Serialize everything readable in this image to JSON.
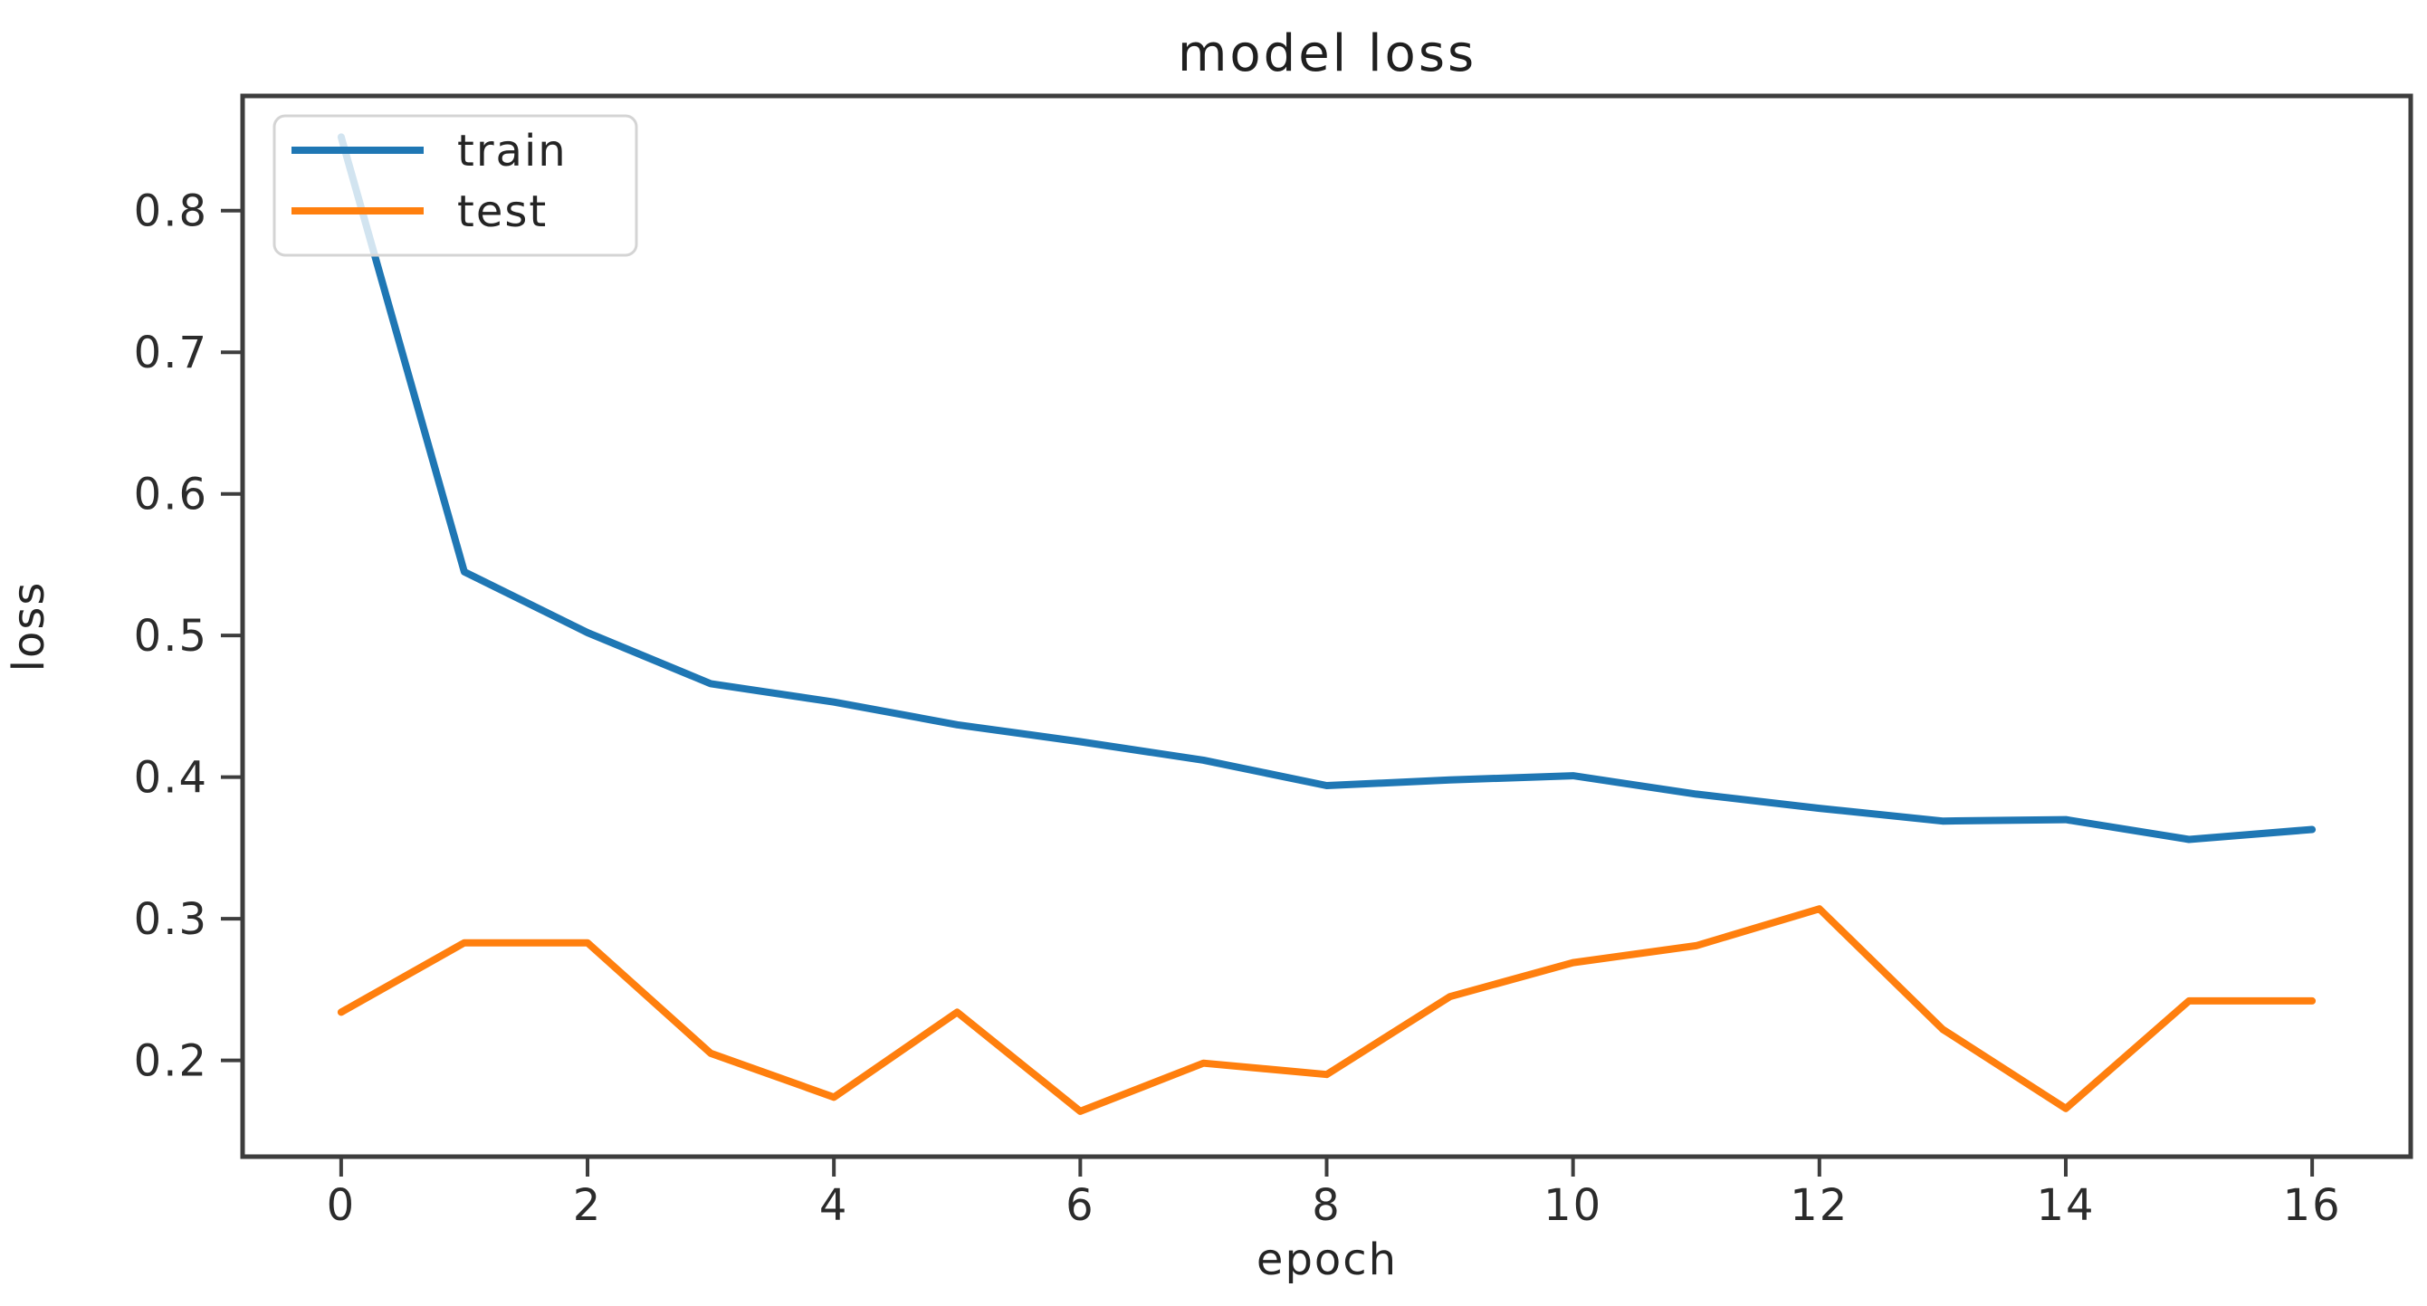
{
  "chart_data": {
    "type": "line",
    "title": "model loss",
    "xlabel": "epoch",
    "ylabel": "loss",
    "x": [
      0,
      1,
      2,
      3,
      4,
      5,
      6,
      7,
      8,
      9,
      10,
      11,
      12,
      13,
      14,
      15,
      16
    ],
    "series": [
      {
        "name": "train",
        "color": "#1f77b4",
        "values": [
          0.852,
          0.545,
          0.502,
          0.466,
          0.453,
          0.437,
          0.425,
          0.412,
          0.394,
          0.398,
          0.401,
          0.388,
          0.378,
          0.369,
          0.37,
          0.356,
          0.363
        ]
      },
      {
        "name": "test",
        "color": "#ff7f0e",
        "values": [
          0.234,
          0.283,
          0.283,
          0.205,
          0.174,
          0.234,
          0.164,
          0.198,
          0.19,
          0.245,
          0.269,
          0.281,
          0.307,
          0.222,
          0.166,
          0.242,
          0.242
        ]
      }
    ],
    "xticks": [
      0,
      2,
      4,
      6,
      8,
      10,
      12,
      14,
      16
    ],
    "yticks": [
      0.2,
      0.3,
      0.4,
      0.5,
      0.6,
      0.7,
      0.8
    ],
    "xlim": [
      -0.8,
      16.8
    ],
    "ylim": [
      0.132,
      0.881
    ],
    "grid": false,
    "legend_position": "upper left"
  },
  "legend": {
    "items": [
      {
        "label": "train",
        "color": "#1f77b4"
      },
      {
        "label": "test",
        "color": "#ff7f0e"
      }
    ]
  },
  "style": {
    "axis_color": "#3d3d3d",
    "tick_label_color": "#2b2b2b",
    "background": "#ffffff",
    "line_width": 8
  }
}
